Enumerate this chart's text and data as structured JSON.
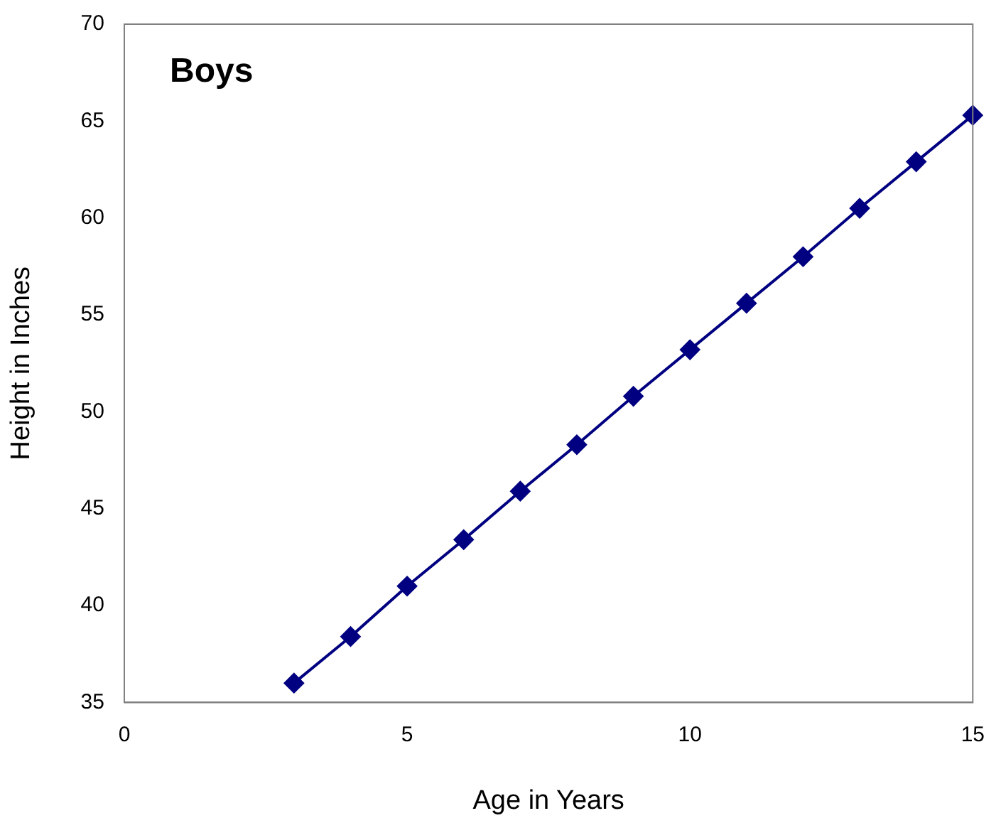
{
  "chart_data": {
    "type": "line",
    "xlabel": "Age in Years",
    "ylabel": "Height in Inches",
    "annotations": [
      "Boys"
    ],
    "x": [
      3,
      4,
      5,
      6,
      7,
      8,
      9,
      10,
      11,
      12,
      13,
      14,
      15
    ],
    "series": [
      {
        "color": "#000080",
        "values": [
          36.0,
          38.4,
          41.0,
          43.4,
          45.9,
          48.3,
          50.8,
          53.2,
          55.6,
          58.0,
          60.5,
          62.9,
          65.3
        ]
      }
    ],
    "xlim": [
      0,
      15
    ],
    "xticks": [
      0,
      5,
      10,
      15
    ],
    "ylim": [
      35,
      70
    ],
    "yticks": [
      35,
      40,
      45,
      50,
      55,
      60,
      65,
      70
    ],
    "grid": false,
    "legend": false,
    "marker": "diamond",
    "line_style": "solid"
  }
}
